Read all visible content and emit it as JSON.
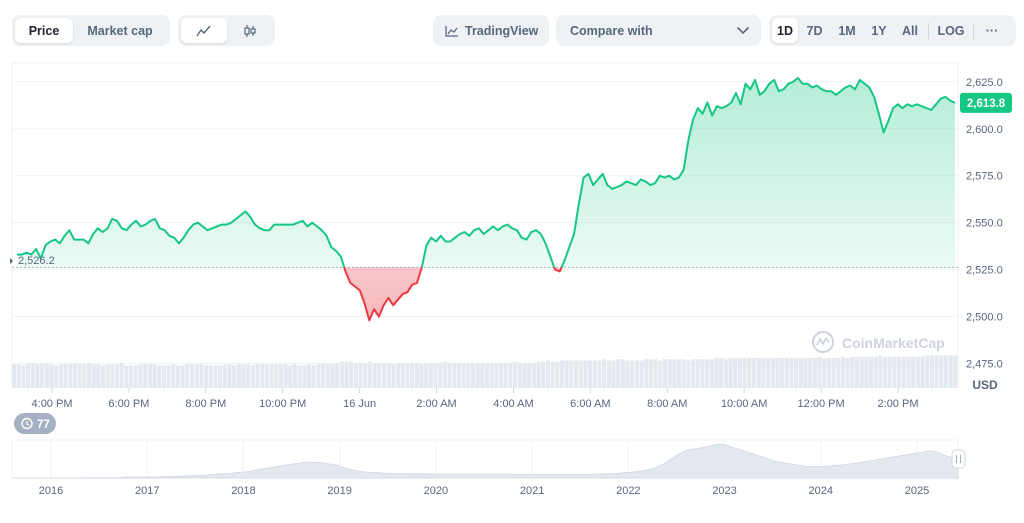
{
  "toolbar": {
    "price_label": "Price",
    "market_cap_label": "Market cap",
    "tradingview_label": "TradingView",
    "compare_label": "Compare with",
    "ranges": [
      "1D",
      "7D",
      "1M",
      "1Y",
      "All"
    ],
    "active_range": "1D",
    "log_label": "LOG",
    "more_label": "···"
  },
  "chart_data": {
    "type": "area",
    "currency": "USD",
    "y_ticks": [
      "2,475.0",
      "2,500.0",
      "2,525.0",
      "2,550.0",
      "2,575.0",
      "2,600.0",
      "2,625.0"
    ],
    "ylim": [
      2462,
      2635
    ],
    "x_ticks": [
      "4:00 PM",
      "6:00 PM",
      "8:00 PM",
      "10:00 PM",
      "16 Jun",
      "2:00 AM",
      "4:00 AM",
      "6:00 AM",
      "8:00 AM",
      "10:00 AM",
      "12:00 PM",
      "2:00 PM"
    ],
    "baseline": 2526.2,
    "baseline_label": "2,526.2",
    "current_price": 2613.8,
    "current_price_label": "2,613.8",
    "up_color": "#16c784",
    "down_color": "#ea3943",
    "price_series": [
      2533,
      2533,
      2534,
      2533,
      2536,
      2531,
      2538,
      2540,
      2541,
      2539,
      2543,
      2546,
      2541,
      2541,
      2541,
      2539,
      2544,
      2547,
      2545,
      2547,
      2552,
      2551,
      2547,
      2546,
      2549,
      2551,
      2548,
      2549,
      2551,
      2552,
      2547,
      2546,
      2543,
      2542,
      2539,
      2542,
      2546,
      2549,
      2550,
      2548,
      2546,
      2547,
      2548,
      2549,
      2549,
      2550,
      2552,
      2554,
      2556,
      2553,
      2549,
      2547,
      2546,
      2546,
      2549,
      2549,
      2549,
      2549,
      2549,
      2550,
      2551,
      2548,
      2550,
      2548,
      2546,
      2543,
      2537,
      2535,
      2532,
      2524,
      2518,
      2516,
      2514,
      2507,
      2498,
      2504,
      2500,
      2506,
      2510,
      2506,
      2509,
      2512,
      2513,
      2517,
      2518,
      2526,
      2538,
      2542,
      2540,
      2543,
      2540,
      2540,
      2542,
      2544,
      2545,
      2543,
      2546,
      2547,
      2544,
      2546,
      2548,
      2546,
      2548,
      2549,
      2547,
      2546,
      2542,
      2541,
      2545,
      2546,
      2544,
      2539,
      2532,
      2525,
      2524,
      2530,
      2537,
      2544,
      2560,
      2574,
      2576,
      2570,
      2573,
      2576,
      2570,
      2568,
      2569,
      2570,
      2572,
      2571,
      2570,
      2573,
      2572,
      2570,
      2571,
      2575,
      2574,
      2575,
      2573,
      2574,
      2578,
      2594,
      2605,
      2611,
      2608,
      2614,
      2607,
      2612,
      2611,
      2612,
      2614,
      2619,
      2613,
      2624,
      2621,
      2626,
      2618,
      2620,
      2624,
      2626,
      2620,
      2621,
      2624,
      2625,
      2627,
      2624,
      2624,
      2622,
      2623,
      2621,
      2620,
      2620,
      2618,
      2620,
      2622,
      2623,
      2621,
      2626,
      2624,
      2622,
      2617,
      2608,
      2598,
      2604,
      2611,
      2613,
      2611,
      2613,
      2612,
      2613,
      2612,
      2611,
      2610,
      2613,
      2616,
      2617,
      2615,
      2613.8
    ],
    "volume_series": [
      19,
      19,
      18,
      19,
      20,
      19,
      20,
      20,
      19,
      18,
      19,
      19,
      19,
      20,
      19,
      19,
      20,
      19,
      19,
      18,
      19,
      19,
      19,
      20,
      18,
      18,
      18,
      19,
      19,
      19,
      19,
      18,
      18,
      18,
      19,
      18,
      18,
      19,
      19,
      19,
      19,
      18,
      18,
      18,
      18,
      19,
      19,
      18,
      19,
      19,
      19,
      18,
      19,
      19,
      19,
      19,
      19,
      19,
      19,
      18,
      19,
      18,
      18,
      19,
      18,
      19,
      20,
      19,
      19,
      20,
      21,
      21,
      21,
      20,
      20,
      20,
      21,
      20,
      20,
      20,
      20,
      19,
      20,
      20,
      20,
      20,
      20,
      19,
      20,
      20,
      20,
      20,
      21,
      20,
      20,
      20,
      20,
      20,
      20,
      20,
      20,
      20,
      20,
      20,
      20,
      20,
      20,
      21,
      20,
      20,
      20,
      20,
      21,
      21,
      22,
      21,
      21,
      22,
      22,
      22,
      22,
      22,
      22,
      22,
      22,
      22,
      23,
      22,
      22,
      23,
      23,
      22,
      22,
      22,
      22,
      23,
      23,
      23,
      22,
      23,
      23,
      23,
      23,
      23,
      22,
      23,
      23,
      23,
      23,
      23,
      24,
      24,
      23,
      24,
      24,
      24,
      24,
      24,
      24,
      24,
      24,
      24,
      24,
      24,
      24,
      24,
      24,
      24,
      24,
      24,
      24,
      24,
      25,
      24,
      24,
      24,
      24,
      25,
      24,
      25,
      25,
      25,
      25,
      25,
      25,
      26,
      25,
      25,
      25,
      25,
      25,
      25,
      25,
      25,
      25,
      26,
      26,
      26,
      26,
      26,
      26,
      26
    ],
    "navigator": {
      "years": [
        "2016",
        "2017",
        "2018",
        "2019",
        "2020",
        "2021",
        "2022",
        "2023",
        "2024",
        "2025"
      ],
      "history": [
        0,
        0,
        0,
        0,
        0,
        0,
        0,
        0,
        0,
        0,
        0,
        0,
        0,
        0,
        0,
        0,
        1,
        1,
        1,
        1,
        1,
        1,
        1,
        1,
        1,
        2,
        2,
        2,
        2,
        2,
        3,
        3,
        3,
        3,
        4,
        4,
        4,
        5,
        5,
        6,
        6,
        7,
        7,
        8,
        9,
        10,
        11,
        12,
        13,
        14,
        15,
        16,
        18,
        20,
        22,
        24,
        26,
        28,
        30,
        32,
        34,
        36,
        38,
        40,
        41,
        42,
        42,
        41,
        40,
        38,
        36,
        34,
        30,
        26,
        22,
        20,
        18,
        16,
        15,
        14,
        14,
        13,
        13,
        12,
        12,
        12,
        12,
        11,
        11,
        11,
        11,
        11,
        10,
        10,
        10,
        10,
        10,
        10,
        10,
        10,
        10,
        10,
        10,
        10,
        10,
        10,
        10,
        10,
        10,
        10,
        9,
        9,
        9,
        9,
        9,
        9,
        9,
        9,
        9,
        9,
        9,
        9,
        9,
        9,
        9,
        9,
        9,
        10,
        10,
        10,
        11,
        11,
        12,
        13,
        14,
        15,
        16,
        17,
        19,
        21,
        24,
        28,
        34,
        40,
        48,
        56,
        64,
        70,
        74,
        76,
        78,
        80,
        83,
        86,
        88,
        90,
        88,
        84,
        80,
        76,
        72,
        68,
        64,
        60,
        56,
        52,
        48,
        44,
        42,
        40,
        38,
        36,
        34,
        32,
        30,
        30,
        30,
        30,
        31,
        32,
        33,
        34,
        35,
        36,
        38,
        40,
        42,
        44,
        46,
        48,
        50,
        52,
        54,
        56,
        58,
        60,
        62,
        64,
        66,
        68,
        70,
        72,
        70,
        66,
        60,
        56,
        52,
        48
      ],
      "badge_label": "77"
    },
    "watermark": "CoinMarketCap"
  }
}
